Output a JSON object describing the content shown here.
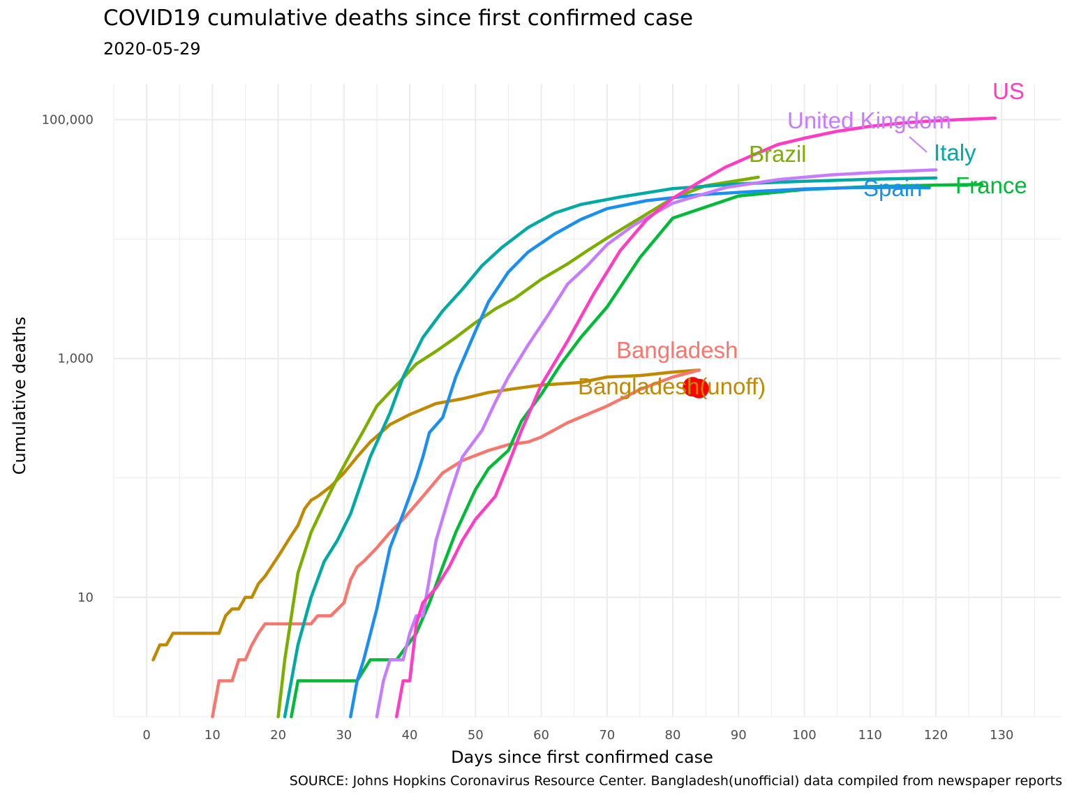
{
  "chart_data": {
    "type": "line",
    "title": "COVID19 cumulative deaths since first confirmed case",
    "subtitle": "2020-05-29",
    "xlabel": "Days since first confirmed case",
    "ylabel": "Cumulative deaths",
    "caption": "SOURCE: Johns Hopkins Coronavirus Resource Center. Bangladesh(unofficial) data compiled from newspaper reports",
    "xlim": [
      -5,
      139
    ],
    "ylim": [
      1,
      200000
    ],
    "yscale": "log10",
    "grid": true,
    "legend": "none (direct labels)",
    "x_ticks": [
      0,
      10,
      20,
      30,
      40,
      50,
      60,
      70,
      80,
      90,
      100,
      110,
      120,
      130
    ],
    "x_tick_labels": [
      "0",
      "10",
      "20",
      "30",
      "40",
      "50",
      "60",
      "70",
      "80",
      "90",
      "100",
      "110",
      "120",
      "130"
    ],
    "y_ticks": [
      10,
      1000,
      100000
    ],
    "y_tick_labels": [
      "10",
      "1,000",
      "100,000"
    ],
    "series": [
      {
        "name": "Bangladesh(unoff)",
        "color": "#C08A00",
        "x": [
          1,
          2,
          3,
          4,
          11,
          12,
          13,
          14,
          15,
          16,
          17,
          18,
          20,
          22,
          23,
          24,
          25,
          26,
          28,
          30,
          32,
          34,
          36,
          37,
          40,
          44,
          48,
          52,
          56,
          60,
          66,
          70,
          75,
          80,
          84
        ],
        "y": [
          3,
          4,
          4,
          5,
          5,
          7,
          8,
          8,
          10,
          10,
          13,
          15,
          22,
          33,
          40,
          55,
          65,
          70,
          85,
          110,
          150,
          200,
          250,
          280,
          340,
          420,
          460,
          520,
          560,
          600,
          630,
          700,
          720,
          770,
          800
        ]
      },
      {
        "name": "Bangladesh",
        "color": "#F8766D",
        "x": [
          10,
          11,
          13,
          14,
          15,
          16,
          17,
          18,
          22,
          25,
          26,
          28,
          30,
          31,
          32,
          33,
          35,
          37,
          39,
          42,
          45,
          48,
          52,
          55,
          58,
          60,
          64,
          70,
          75,
          80,
          84
        ],
        "y": [
          1,
          2,
          2,
          3,
          3,
          4,
          5,
          6,
          6,
          6,
          7,
          7,
          9,
          14,
          18,
          20,
          26,
          35,
          45,
          70,
          110,
          140,
          170,
          190,
          200,
          220,
          290,
          400,
          550,
          700,
          800
        ]
      },
      {
        "name": "Brazil",
        "color": "#7CAE00",
        "x": [
          20,
          21,
          23,
          25,
          27,
          29,
          31,
          33,
          35,
          38,
          41,
          44,
          47,
          50,
          53,
          56,
          60,
          64,
          67,
          70,
          75,
          80,
          85,
          90,
          93
        ],
        "y": [
          1,
          3,
          16,
          35,
          60,
          100,
          160,
          250,
          400,
          600,
          900,
          1150,
          1500,
          2000,
          2600,
          3200,
          4600,
          6200,
          8000,
          10200,
          15000,
          22000,
          28000,
          31000,
          33000
        ]
      },
      {
        "name": "France",
        "color": "#00BA38",
        "x": [
          22,
          23,
          32,
          34,
          36,
          38,
          41,
          43,
          45,
          47,
          50,
          52,
          55,
          57,
          60,
          63,
          66,
          70,
          75,
          80,
          90,
          100,
          110,
          120,
          127
        ],
        "y": [
          1,
          2,
          2,
          3,
          3,
          3,
          5,
          9,
          18,
          35,
          80,
          120,
          170,
          300,
          500,
          900,
          1500,
          2700,
          7000,
          15000,
          23000,
          26000,
          27500,
          28300,
          28700
        ]
      },
      {
        "name": "Italy",
        "color": "#00A9A4",
        "x": [
          21,
          23,
          25,
          27,
          29,
          31,
          34,
          37,
          39,
          42,
          45,
          48,
          51,
          54,
          58,
          62,
          66,
          72,
          80,
          90,
          100,
          110,
          120
        ],
        "y": [
          1,
          4,
          10,
          20,
          30,
          50,
          150,
          350,
          700,
          1500,
          2500,
          3800,
          6000,
          8500,
          12500,
          16500,
          19500,
          22500,
          26500,
          29000,
          30500,
          31700,
          32500
        ]
      },
      {
        "name": "Spain",
        "color": "#1A8FF0",
        "x": [
          31,
          32,
          33,
          35,
          37,
          39,
          41,
          42,
          43,
          45,
          47,
          50,
          52,
          55,
          58,
          62,
          66,
          70,
          76,
          84,
          92,
          100,
          108,
          114,
          119
        ],
        "y": [
          1,
          2,
          3,
          8,
          26,
          50,
          100,
          150,
          240,
          320,
          700,
          1700,
          3000,
          5300,
          7800,
          11000,
          14600,
          18000,
          21000,
          23500,
          25000,
          26300,
          27000,
          27100,
          26900
        ]
      },
      {
        "name": "United Kingdom",
        "color": "#C77CFF",
        "x": [
          35,
          36,
          37,
          39,
          40,
          41,
          42,
          44,
          46,
          48,
          51,
          53,
          55,
          58,
          61,
          64,
          67,
          70,
          74,
          80,
          88,
          96,
          104,
          112,
          120
        ],
        "y": [
          1,
          2,
          3,
          3,
          5,
          7,
          7,
          30,
          70,
          150,
          250,
          430,
          700,
          1300,
          2300,
          4200,
          6000,
          9000,
          13000,
          20000,
          27000,
          31500,
          34500,
          36500,
          38000
        ]
      },
      {
        "name": "US",
        "color": "#FF3DC4",
        "x": [
          38,
          39,
          40,
          41,
          42,
          44,
          46,
          48,
          50,
          53,
          55,
          57,
          60,
          64,
          68,
          72,
          76,
          80,
          84,
          88,
          92,
          96,
          100,
          105,
          110,
          115,
          120,
          125,
          129
        ],
        "y": [
          1,
          2,
          2,
          6,
          9,
          12,
          18,
          30,
          45,
          70,
          130,
          250,
          600,
          1400,
          3500,
          8000,
          14500,
          22000,
          30000,
          40000,
          50000,
          62000,
          70000,
          80000,
          88000,
          94000,
          98000,
          101000,
          103000
        ]
      }
    ],
    "annotations": [
      {
        "text": "US",
        "color": "#FF3DC4"
      },
      {
        "text": "United Kingdom",
        "color": "#C77CFF"
      },
      {
        "text": "Brazil",
        "color": "#7CAE00"
      },
      {
        "text": "Italy",
        "color": "#00A9A4"
      },
      {
        "text": "Spain",
        "color": "#1A8FF0"
      },
      {
        "text": "France",
        "color": "#00BA38"
      },
      {
        "text": "Bangladesh",
        "color": "#F8766D"
      },
      {
        "text": "Bangladesh(unoff)",
        "color": "#C08A00"
      }
    ],
    "highlight_points": [
      {
        "x": 83,
        "y": 580,
        "color": "#FF0000"
      },
      {
        "x": 84,
        "y": 560,
        "color": "#FF0000"
      }
    ]
  }
}
